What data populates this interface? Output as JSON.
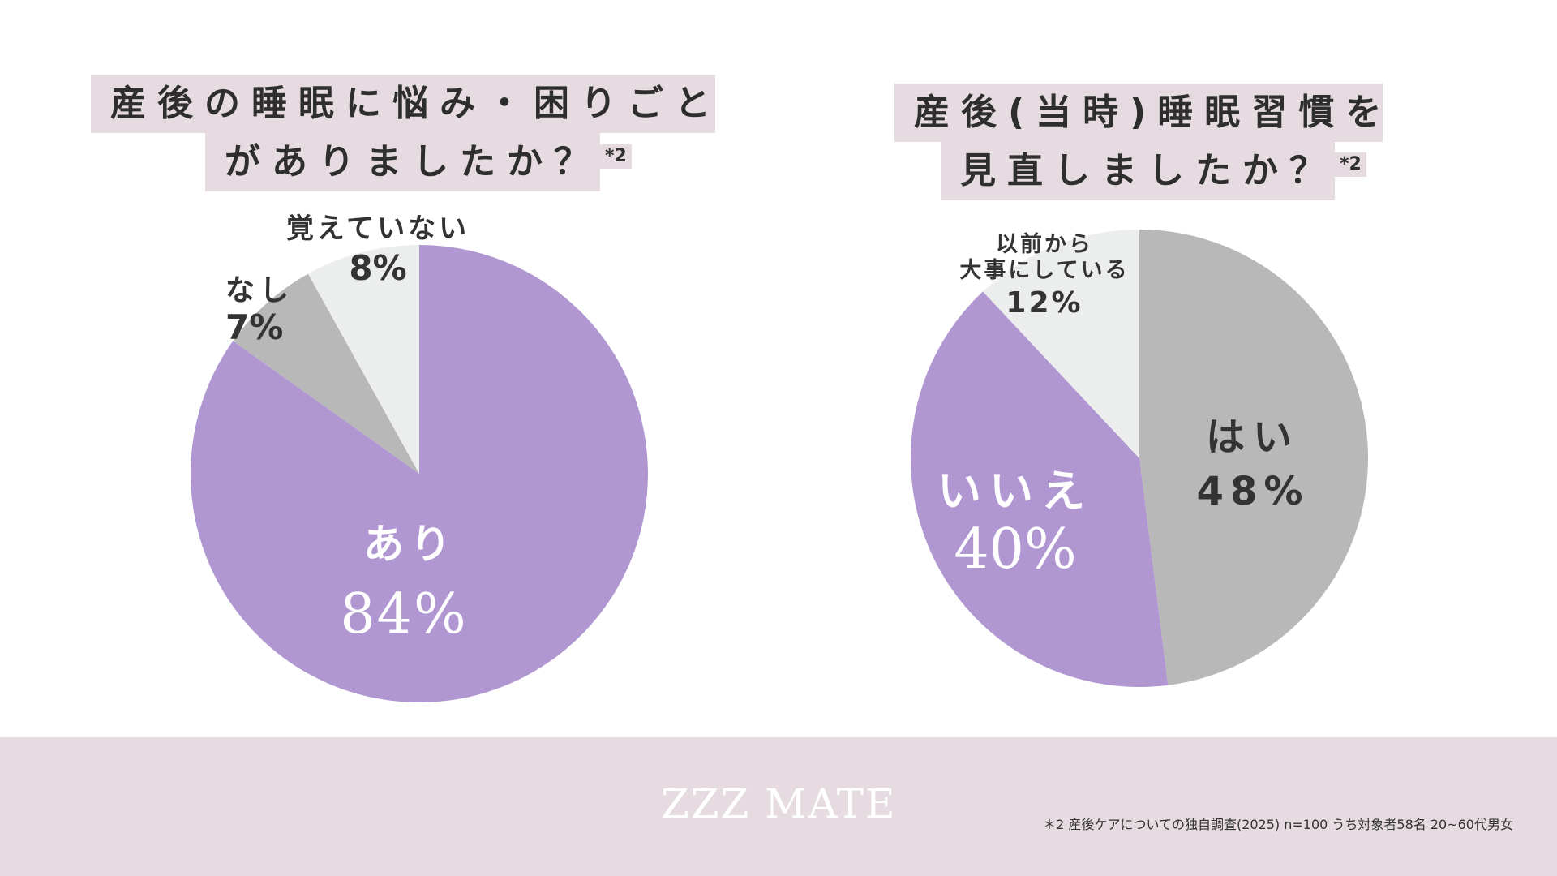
{
  "colors": {
    "purple": "#b097d2",
    "gray": "#b8b8b8",
    "light": "#eceeed",
    "title_bg": "#e5dbe1",
    "footer_bg": "#e5dbe1"
  },
  "chart_data": [
    {
      "type": "pie",
      "title_line1": "産後の睡眠に悩み・困りごと",
      "title_line2": "がありましたか？",
      "title_note": "*2",
      "slices": [
        {
          "name": "あり",
          "value": 84,
          "label": "84%",
          "color": "#b097d2"
        },
        {
          "name": "なし",
          "value": 7,
          "label": "7%",
          "color": "#b8b8b8"
        },
        {
          "name": "覚えていない",
          "value": 8,
          "label": "8%",
          "color": "#eceeed"
        }
      ]
    },
    {
      "type": "pie",
      "title_line1": "産後(当時)睡眠習慣を",
      "title_line2": "見直しましたか？",
      "title_note": "*2",
      "slices": [
        {
          "name": "はい",
          "value": 48,
          "label": "48%",
          "color": "#b8b8b8"
        },
        {
          "name": "いいえ",
          "value": 40,
          "label": "40%",
          "color": "#b097d2"
        },
        {
          "name_line1": "以前から",
          "name_line2": "大事にしている",
          "value": 12,
          "label": "12%",
          "color": "#eceeed"
        }
      ]
    }
  ],
  "footer": {
    "logo": "ZZZ MATE",
    "source": "＊2 産後ケアについての独自調査(2025) n=100 うち対象者58名 20~60代男女"
  }
}
